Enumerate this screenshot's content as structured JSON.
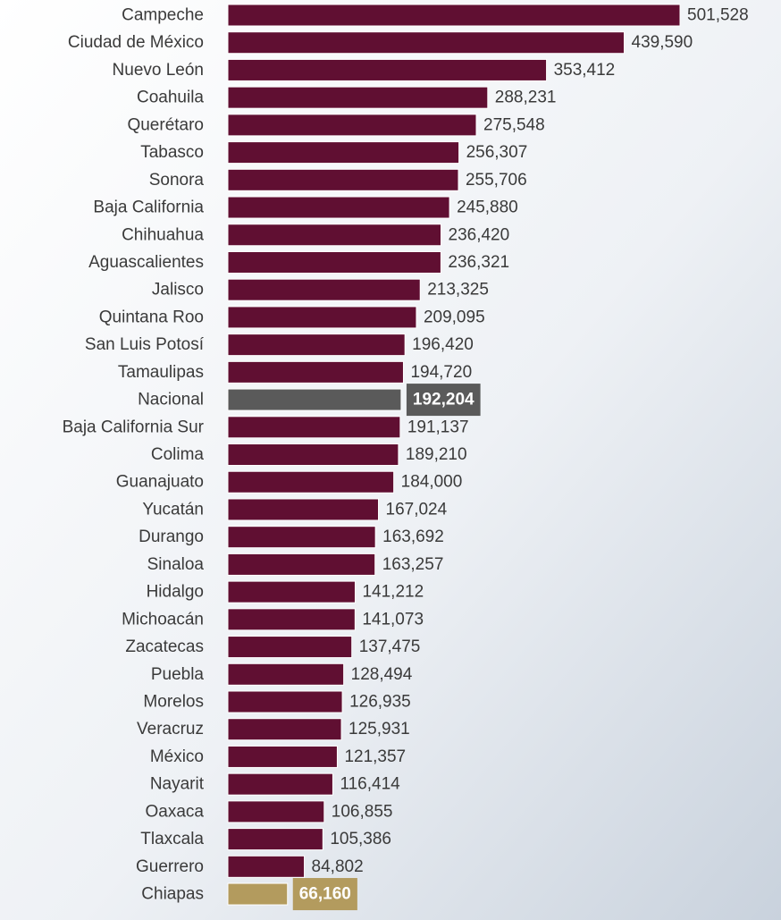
{
  "chart_data": {
    "type": "barh",
    "categories": [
      "Campeche",
      "Ciudad de México",
      "Nuevo León",
      "Coahuila",
      "Querétaro",
      "Tabasco",
      "Sonora",
      "Baja California",
      "Chihuahua",
      "Aguascalientes",
      "Jalisco",
      "Quintana Roo",
      "San Luis Potosí",
      "Tamaulipas",
      "Nacional",
      "Baja California Sur",
      "Colima",
      "Guanajuato",
      "Yucatán",
      "Durango",
      "Sinaloa",
      "Hidalgo",
      "Michoacán",
      "Zacatecas",
      "Puebla",
      "Morelos",
      "Veracruz",
      "México",
      "Nayarit",
      "Oaxaca",
      "Tlaxcala",
      "Guerrero",
      "Chiapas"
    ],
    "values": [
      501528,
      439590,
      353412,
      288231,
      275548,
      256307,
      255706,
      245880,
      236420,
      236321,
      213325,
      209095,
      196420,
      194720,
      192204,
      191137,
      189210,
      184000,
      167024,
      163692,
      163257,
      141212,
      141073,
      137475,
      128494,
      126935,
      125931,
      121357,
      116414,
      106855,
      105386,
      84802,
      66160
    ],
    "value_labels": [
      "501,528",
      "439,590",
      "353,412",
      "288,231",
      "275,548",
      "256,307",
      "255,706",
      "245,880",
      "236,420",
      "236,321",
      "213,325",
      "209,095",
      "196,420",
      "194,720",
      "192,204",
      "191,137",
      "189,210",
      "184,000",
      "167,024",
      "163,692",
      "163,257",
      "141,212",
      "141,073",
      "137,475",
      "128,494",
      "126,935",
      "125,931",
      "121,357",
      "116,414",
      "106,855",
      "105,386",
      "84,802",
      "66,160"
    ],
    "colors": [
      "#600f32",
      "#600f32",
      "#600f32",
      "#600f32",
      "#600f32",
      "#600f32",
      "#600f32",
      "#600f32",
      "#600f32",
      "#600f32",
      "#600f32",
      "#600f32",
      "#600f32",
      "#600f32",
      "#5a5a5a",
      "#600f32",
      "#600f32",
      "#600f32",
      "#600f32",
      "#600f32",
      "#600f32",
      "#600f32",
      "#600f32",
      "#600f32",
      "#600f32",
      "#600f32",
      "#600f32",
      "#600f32",
      "#600f32",
      "#600f32",
      "#600f32",
      "#600f32",
      "#b39b5e"
    ]
  }
}
